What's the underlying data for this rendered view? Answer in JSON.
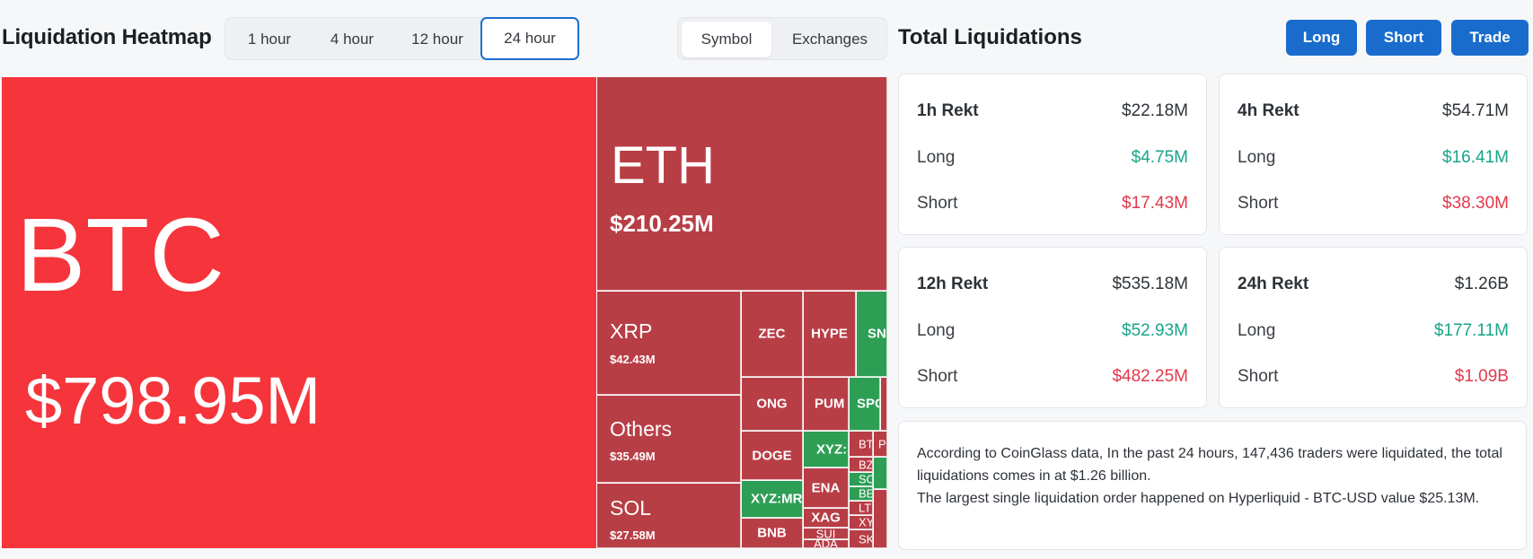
{
  "heatmap": {
    "title": "Liquidation Heatmap",
    "time_tabs": [
      "1 hour",
      "4 hour",
      "12 hour",
      "24 hour"
    ],
    "active_time_tab": "24 hour",
    "view_tabs": [
      "Symbol",
      "Exchanges"
    ],
    "active_view_tab": "Symbol",
    "tiles": {
      "btc": {
        "symbol": "BTC",
        "value": "$798.95M"
      },
      "eth": {
        "symbol": "ETH",
        "value": "$210.25M"
      },
      "xrp": {
        "symbol": "XRP",
        "value": "$42.43M"
      },
      "others": {
        "symbol": "Others",
        "value": "$35.49M"
      },
      "sol": {
        "symbol": "SOL",
        "value": "$27.58M"
      },
      "zec": {
        "symbol": "ZEC"
      },
      "hype": {
        "symbol": "HYPE"
      },
      "sni": {
        "symbol": "SNI"
      },
      "ong": {
        "symbol": "ONG"
      },
      "pum": {
        "symbol": "PUM"
      },
      "spc": {
        "symbol": "SPC"
      },
      "doge": {
        "symbol": "DOGE"
      },
      "xyzs": {
        "symbol": "XYZ:S"
      },
      "bt": {
        "symbol": "BT"
      },
      "p": {
        "symbol": "P"
      },
      "xyzmr": {
        "symbol": "XYZ:MRI"
      },
      "ena": {
        "symbol": "ENA"
      },
      "bz": {
        "symbol": "BZ"
      },
      "so": {
        "symbol": "SO"
      },
      "be": {
        "symbol": "BE"
      },
      "xag": {
        "symbol": "XAG"
      },
      "lt": {
        "symbol": "LT"
      },
      "bnb": {
        "symbol": "BNB"
      },
      "sui": {
        "symbol": "SUI"
      },
      "xy": {
        "symbol": "XY"
      },
      "ada": {
        "symbol": "ADA"
      },
      "sk": {
        "symbol": "SK"
      }
    },
    "colors": {
      "loss_bright": "#f5353b",
      "loss": "#b83e46",
      "gain": "#2e9e55"
    }
  },
  "totals": {
    "title": "Total Liquidations",
    "buttons": {
      "long": "Long",
      "short": "Short",
      "trade": "Trade"
    },
    "cards": [
      {
        "label": "1h Rekt",
        "total": "$22.18M",
        "long_label": "Long",
        "long": "$4.75M",
        "short_label": "Short",
        "short": "$17.43M"
      },
      {
        "label": "4h Rekt",
        "total": "$54.71M",
        "long_label": "Long",
        "long": "$16.41M",
        "short_label": "Short",
        "short": "$38.30M"
      },
      {
        "label": "12h Rekt",
        "total": "$535.18M",
        "long_label": "Long",
        "long": "$52.93M",
        "short_label": "Short",
        "short": "$482.25M"
      },
      {
        "label": "24h Rekt",
        "total": "$1.26B",
        "long_label": "Long",
        "long": "$177.11M",
        "short_label": "Short",
        "short": "$1.09B"
      }
    ],
    "summary_line1": "According to CoinGlass data, In the past 24 hours, 147,436 traders were liquidated, the total liquidations comes in at $1.26 billion.",
    "summary_line2": "The largest single liquidation order happened on Hyperliquid - BTC-USD value $25.13M."
  }
}
